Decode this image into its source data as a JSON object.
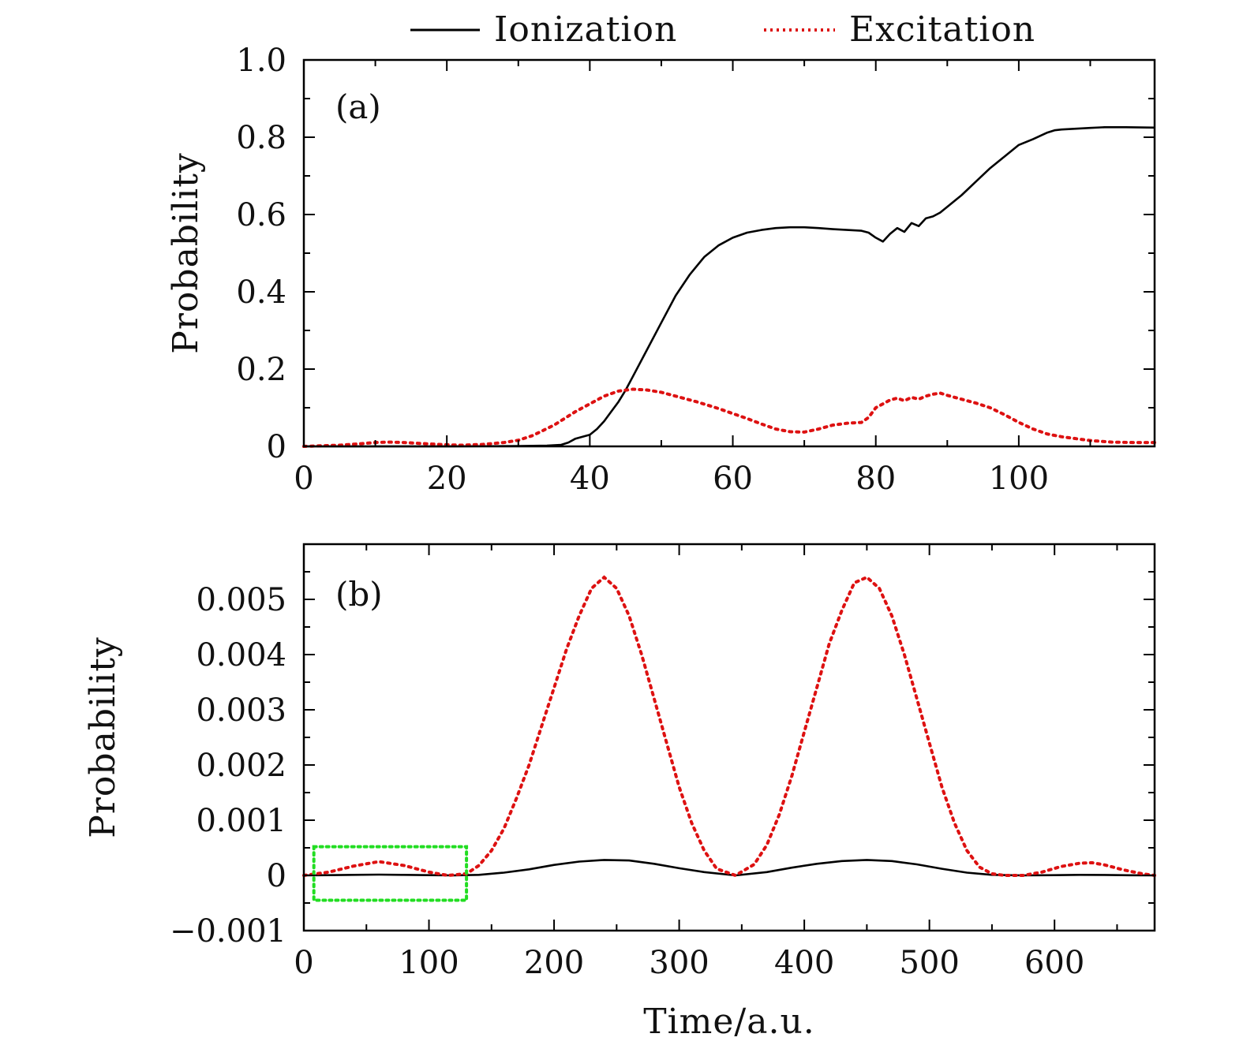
{
  "legend": {
    "entries": [
      {
        "label": "Ionization",
        "style": "solid",
        "color": "#000000"
      },
      {
        "label": "Excitation",
        "style": "dotted",
        "color": "#dd1111"
      }
    ]
  },
  "highlight_color": "#22dd22",
  "chart_data": [
    {
      "type": "line",
      "panel_label": "(a)",
      "title": "",
      "xlabel": "",
      "ylabel": "Probability",
      "xlim": [
        0,
        119
      ],
      "ylim": [
        0,
        1.0
      ],
      "xticks": [
        0,
        20,
        40,
        60,
        80,
        100
      ],
      "xtick_labels": [
        "0",
        "20",
        "40",
        "60",
        "80",
        "100"
      ],
      "yticks": [
        0,
        0.2,
        0.4,
        0.6,
        0.8,
        1.0
      ],
      "ytick_labels": [
        "0",
        "0.2",
        "0.4",
        "0.6",
        "0.8",
        "1.0"
      ],
      "series": [
        {
          "name": "Ionization",
          "style": "solid",
          "color": "#000000",
          "x": [
            0,
            10,
            20,
            30,
            34,
            36,
            37,
            38,
            39,
            40,
            41,
            42,
            43,
            44,
            45,
            46,
            48,
            50,
            52,
            54,
            56,
            58,
            60,
            62,
            64,
            66,
            68,
            70,
            72,
            74,
            76,
            78,
            79,
            80,
            81,
            82,
            83,
            84,
            85,
            86,
            87,
            88,
            89,
            90,
            92,
            94,
            96,
            98,
            100,
            102,
            104,
            105,
            106,
            108,
            110,
            112,
            115,
            119
          ],
          "y": [
            0,
            0,
            0,
            0.001,
            0.002,
            0.004,
            0.01,
            0.02,
            0.025,
            0.03,
            0.045,
            0.065,
            0.09,
            0.115,
            0.145,
            0.18,
            0.25,
            0.32,
            0.39,
            0.445,
            0.49,
            0.52,
            0.54,
            0.553,
            0.56,
            0.565,
            0.567,
            0.567,
            0.565,
            0.562,
            0.56,
            0.558,
            0.553,
            0.54,
            0.53,
            0.55,
            0.565,
            0.555,
            0.578,
            0.57,
            0.59,
            0.595,
            0.605,
            0.62,
            0.65,
            0.685,
            0.72,
            0.75,
            0.78,
            0.795,
            0.812,
            0.818,
            0.82,
            0.822,
            0.824,
            0.826,
            0.826,
            0.825
          ]
        },
        {
          "name": "Excitation",
          "style": "dotted",
          "color": "#dd1111",
          "x": [
            0,
            5,
            8,
            10,
            12,
            14,
            16,
            18,
            20,
            22,
            25,
            28,
            30,
            32,
            35,
            38,
            40,
            42,
            44,
            46,
            48,
            50,
            52,
            55,
            58,
            60,
            62,
            64,
            66,
            68,
            70,
            72,
            74,
            76,
            78,
            79,
            80,
            81,
            82,
            83,
            84,
            85,
            86,
            87,
            88,
            89,
            90,
            92,
            94,
            96,
            98,
            100,
            102,
            104,
            106,
            108,
            110,
            113,
            116,
            119
          ],
          "y": [
            0,
            0.003,
            0.007,
            0.01,
            0.011,
            0.01,
            0.008,
            0.006,
            0.004,
            0.003,
            0.005,
            0.01,
            0.016,
            0.028,
            0.055,
            0.09,
            0.11,
            0.13,
            0.143,
            0.148,
            0.146,
            0.14,
            0.13,
            0.115,
            0.098,
            0.085,
            0.072,
            0.058,
            0.045,
            0.038,
            0.037,
            0.045,
            0.055,
            0.06,
            0.062,
            0.075,
            0.1,
            0.11,
            0.12,
            0.125,
            0.118,
            0.127,
            0.122,
            0.13,
            0.135,
            0.138,
            0.132,
            0.122,
            0.112,
            0.1,
            0.082,
            0.062,
            0.045,
            0.032,
            0.025,
            0.02,
            0.015,
            0.011,
            0.01,
            0.01
          ]
        }
      ]
    },
    {
      "type": "line",
      "panel_label": "(b)",
      "title": "",
      "xlabel": "Time/a.u.",
      "ylabel": "Probability",
      "xlim": [
        0,
        680
      ],
      "ylim": [
        -0.001,
        0.006
      ],
      "xticks": [
        0,
        100,
        200,
        300,
        400,
        500,
        600
      ],
      "xtick_labels": [
        "0",
        "100",
        "200",
        "300",
        "400",
        "500",
        "600"
      ],
      "yticks": [
        -0.001,
        0,
        0.001,
        0.002,
        0.003,
        0.004,
        0.005
      ],
      "ytick_labels": [
        "−0.001",
        "0",
        "0.001",
        "0.002",
        "0.003",
        "0.004",
        "0.005"
      ],
      "highlight_box": {
        "x": [
          8,
          130
        ],
        "y": [
          -0.00045,
          0.00052
        ]
      },
      "series": [
        {
          "name": "Ionization",
          "style": "solid",
          "color": "#000000",
          "x": [
            0,
            20,
            40,
            60,
            80,
            100,
            120,
            140,
            160,
            180,
            200,
            220,
            240,
            260,
            280,
            300,
            320,
            345,
            370,
            390,
            410,
            430,
            450,
            470,
            490,
            510,
            530,
            550,
            575,
            600,
            620,
            640,
            660,
            680
          ],
          "y": [
            0,
            5e-06,
            1e-05,
            1.5e-05,
            1e-05,
            5e-06,
            0,
            1e-05,
            5e-05,
            0.00011,
            0.00019,
            0.00025,
            0.00028,
            0.00027,
            0.00021,
            0.00013,
            6e-05,
            0,
            6e-05,
            0.00014,
            0.00021,
            0.00026,
            0.00028,
            0.00026,
            0.0002,
            0.00012,
            5e-05,
            1e-05,
            0,
            5e-06,
            1e-05,
            8e-06,
            3e-06,
            0
          ]
        },
        {
          "name": "Excitation",
          "style": "dotted",
          "color": "#dd1111",
          "x": [
            0,
            20,
            40,
            60,
            80,
            100,
            115,
            130,
            140,
            150,
            160,
            170,
            180,
            190,
            200,
            210,
            220,
            230,
            240,
            250,
            260,
            270,
            280,
            290,
            300,
            310,
            320,
            330,
            345,
            360,
            370,
            380,
            390,
            400,
            410,
            420,
            430,
            440,
            450,
            460,
            470,
            480,
            490,
            500,
            510,
            520,
            530,
            540,
            550,
            560,
            575,
            590,
            605,
            620,
            630,
            640,
            655,
            670,
            680
          ],
          "y": [
            0,
            6e-05,
            0.00017,
            0.00025,
            0.00018,
            6e-05,
            0,
            3e-05,
            0.00018,
            0.00045,
            0.00085,
            0.0014,
            0.002,
            0.0027,
            0.0034,
            0.0041,
            0.0047,
            0.0052,
            0.0054,
            0.0052,
            0.0047,
            0.004,
            0.0032,
            0.0024,
            0.0016,
            0.00095,
            0.00045,
            0.00012,
            0,
            0.0002,
            0.00055,
            0.0011,
            0.0018,
            0.0026,
            0.0034,
            0.0042,
            0.0048,
            0.0053,
            0.0054,
            0.0052,
            0.0047,
            0.004,
            0.0032,
            0.0024,
            0.0016,
            0.00095,
            0.00045,
            0.00015,
            3e-05,
            0,
            0,
            6e-05,
            0.00016,
            0.00022,
            0.00023,
            0.00019,
            0.0001,
            3e-05,
            0
          ]
        }
      ]
    }
  ]
}
